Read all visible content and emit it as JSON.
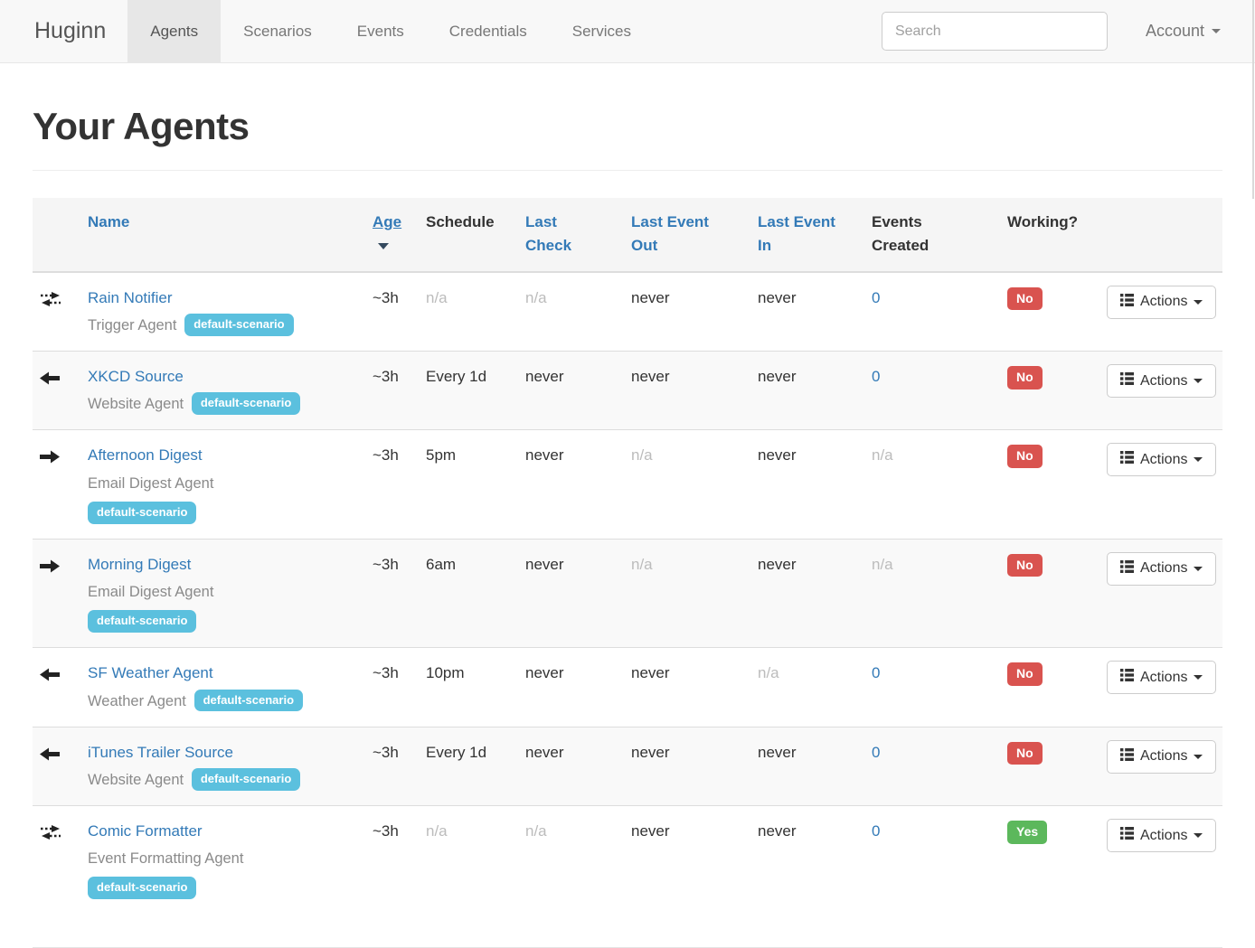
{
  "nav": {
    "brand": "Huginn",
    "items": [
      {
        "label": "Agents",
        "active": true
      },
      {
        "label": "Scenarios",
        "active": false
      },
      {
        "label": "Events",
        "active": false
      },
      {
        "label": "Credentials",
        "active": false
      },
      {
        "label": "Services",
        "active": false
      }
    ],
    "search": {
      "placeholder": "Search",
      "value": ""
    },
    "account_label": "Account"
  },
  "page": {
    "title": "Your Agents"
  },
  "table": {
    "headers": {
      "name": "Name",
      "age": "Age",
      "schedule": "Schedule",
      "last_check": "Last\nCheck",
      "last_event_out": "Last Event\nOut",
      "last_event_in": "Last Event\nIn",
      "events_created": "Events\nCreated",
      "working": "Working?"
    },
    "sorted_by": "age",
    "actions_label": "Actions",
    "rows": [
      {
        "icon": "exchange",
        "name": "Rain Notifier",
        "type": "Trigger Agent",
        "badge": "default-scenario",
        "age": "~3h",
        "schedule": "n/a",
        "last_check": "n/a",
        "last_event_out": "never",
        "last_event_in": "never",
        "events_created": "0",
        "working": "No"
      },
      {
        "icon": "arrow-left",
        "name": "XKCD Source",
        "type": "Website Agent",
        "badge": "default-scenario",
        "age": "~3h",
        "schedule": "Every 1d",
        "last_check": "never",
        "last_event_out": "never",
        "last_event_in": "never",
        "events_created": "0",
        "working": "No"
      },
      {
        "icon": "arrow-right",
        "name": "Afternoon Digest",
        "type": "Email Digest Agent",
        "badge": "default-scenario",
        "age": "~3h",
        "schedule": "5pm",
        "last_check": "never",
        "last_event_out": "n/a",
        "last_event_in": "never",
        "events_created": "n/a",
        "working": "No"
      },
      {
        "icon": "arrow-right",
        "name": "Morning Digest",
        "type": "Email Digest Agent",
        "badge": "default-scenario",
        "age": "~3h",
        "schedule": "6am",
        "last_check": "never",
        "last_event_out": "n/a",
        "last_event_in": "never",
        "events_created": "n/a",
        "working": "No"
      },
      {
        "icon": "arrow-left",
        "name": "SF Weather Agent",
        "type": "Weather Agent",
        "badge": "default-scenario",
        "age": "~3h",
        "schedule": "10pm",
        "last_check": "never",
        "last_event_out": "never",
        "last_event_in": "n/a",
        "events_created": "0",
        "working": "No"
      },
      {
        "icon": "arrow-left",
        "name": "iTunes Trailer Source",
        "type": "Website Agent",
        "badge": "default-scenario",
        "age": "~3h",
        "schedule": "Every 1d",
        "last_check": "never",
        "last_event_out": "never",
        "last_event_in": "never",
        "events_created": "0",
        "working": "No"
      },
      {
        "icon": "exchange",
        "name": "Comic Formatter",
        "type": "Event Formatting Agent",
        "badge": "default-scenario",
        "age": "~3h",
        "schedule": "n/a",
        "last_check": "n/a",
        "last_event_out": "never",
        "last_event_in": "never",
        "events_created": "0",
        "working": "Yes"
      }
    ]
  },
  "colors": {
    "link_blue": "#337ab7",
    "badge_info": "#5bc0de",
    "badge_danger": "#d9534f",
    "badge_success": "#5cb85c",
    "navbar_bg": "#f8f8f8",
    "stripe_bg": "#f9f9f9",
    "muted_text": "#bcbcbc"
  }
}
